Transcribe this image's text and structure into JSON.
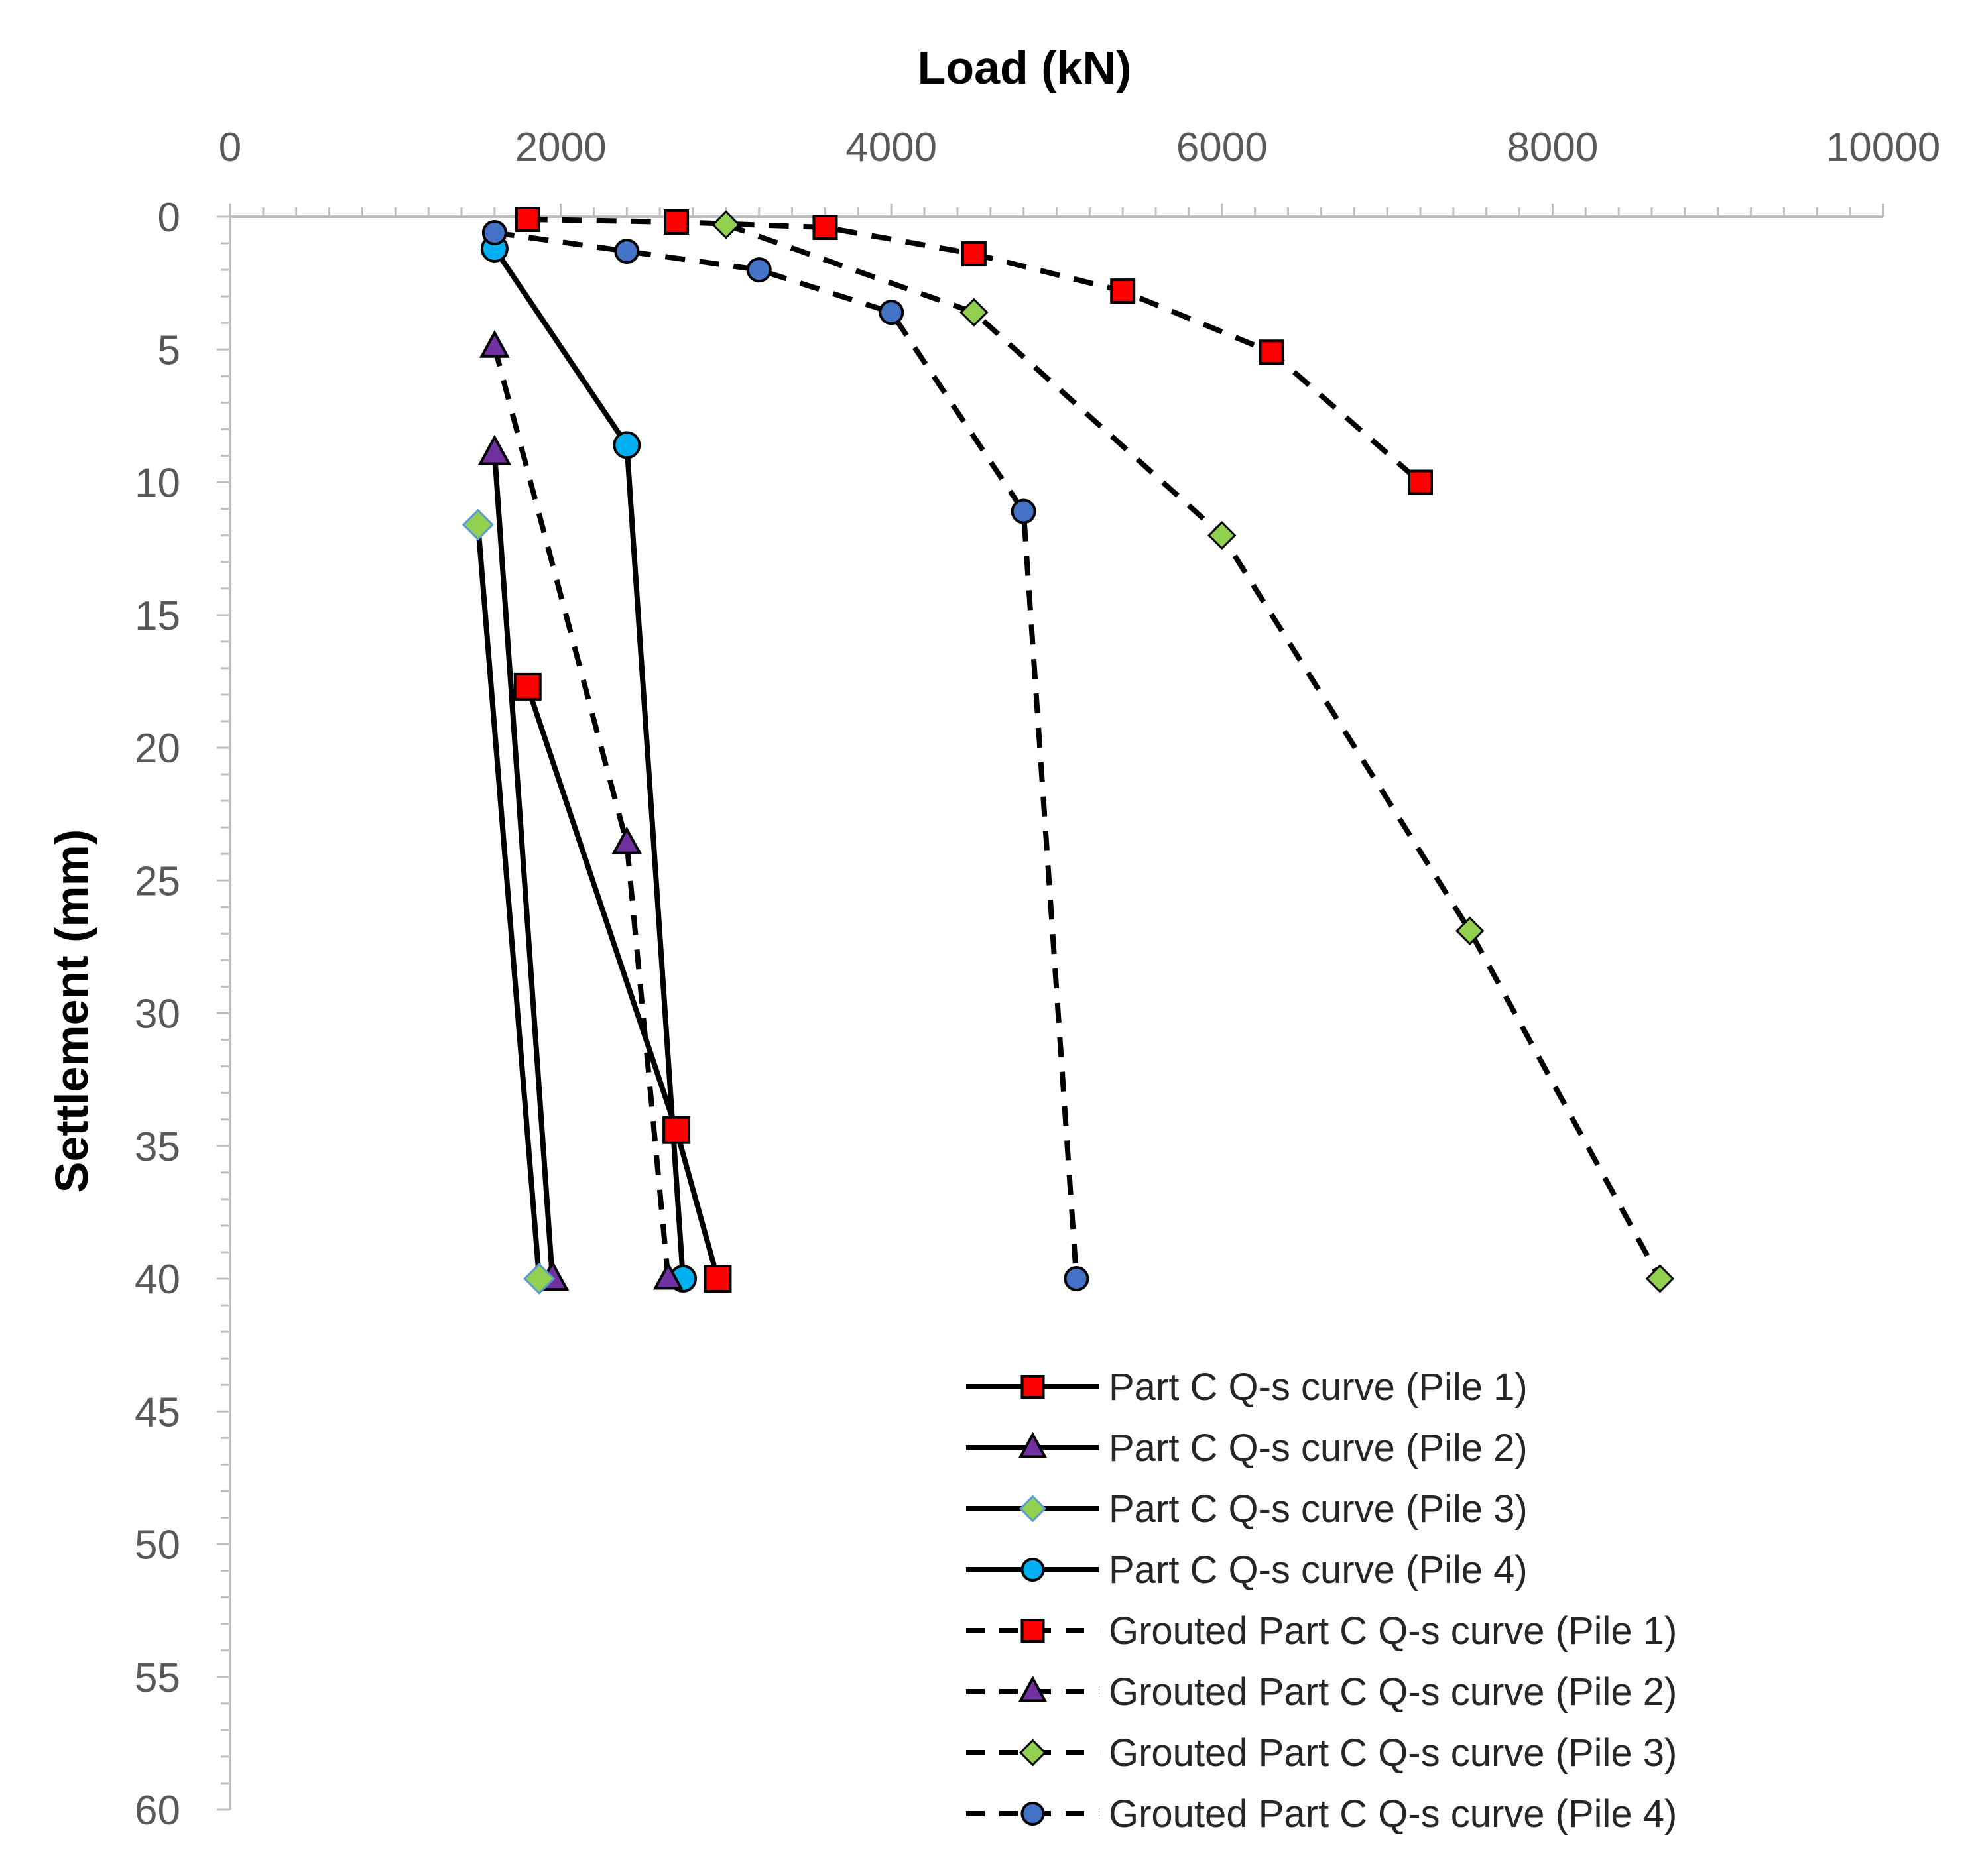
{
  "chart_data": {
    "type": "line",
    "xlabel": "Load (kN)",
    "ylabel": "Settlement (mm)",
    "xlim": [
      0,
      10000
    ],
    "ylim": [
      0,
      60
    ],
    "x_axis_position": "top",
    "y_axis_inverted": true,
    "x_ticks": [
      0,
      2000,
      4000,
      6000,
      8000,
      10000
    ],
    "x_tick_labels": [
      "0",
      "2000",
      "4000",
      "6000",
      "8000",
      "10000"
    ],
    "y_ticks": [
      0,
      5,
      10,
      15,
      20,
      25,
      30,
      35,
      40,
      45,
      50,
      55,
      60
    ],
    "y_tick_labels": [
      "0",
      "5",
      "10",
      "15",
      "20",
      "25",
      "30",
      "35",
      "40",
      "45",
      "50",
      "55",
      "60"
    ],
    "legend_position": "bottom-right",
    "series": [
      {
        "name": "Part C Q-s curve (Pile 1)",
        "line_style": "solid",
        "marker": "square",
        "marker_color": "#ff0000",
        "x": [
          1800,
          2700,
          2950
        ],
        "y": [
          17.7,
          34.4,
          40
        ]
      },
      {
        "name": "Part C Q-s curve (Pile 2)",
        "line_style": "solid",
        "marker": "triangle",
        "marker_color": "#7030a0",
        "x": [
          1600,
          1950
        ],
        "y": [
          8.9,
          40
        ]
      },
      {
        "name": "Part C Q-s curve (Pile 3)",
        "line_style": "solid",
        "marker": "diamond",
        "marker_color": "#92d050",
        "marker_stroke": "#5b9bd5",
        "x": [
          1500,
          1870
        ],
        "y": [
          11.6,
          40
        ]
      },
      {
        "name": "Part C Q-s curve (Pile 4)",
        "line_style": "solid",
        "marker": "circle",
        "marker_color": "#00b0f0",
        "x": [
          1600,
          2400,
          2740
        ],
        "y": [
          1.2,
          8.6,
          40
        ]
      },
      {
        "name": "Grouted Part C Q-s curve (Pile 1)",
        "line_style": "dashed",
        "marker": "square",
        "marker_color": "#ff0000",
        "x": [
          1800,
          2700,
          3600,
          4500,
          5400,
          6300,
          7200
        ],
        "y": [
          0.1,
          0.2,
          0.4,
          1.4,
          2.8,
          5.1,
          10
        ]
      },
      {
        "name": "Grouted Part C Q-s curve (Pile 2)",
        "line_style": "dashed",
        "marker": "triangle",
        "marker_color": "#7030a0",
        "x": [
          1600,
          2400,
          2650
        ],
        "y": [
          4.9,
          23.6,
          40
        ]
      },
      {
        "name": "Grouted Part C Q-s curve (Pile 3)",
        "line_style": "dashed",
        "marker": "diamond",
        "marker_color": "#92d050",
        "x": [
          3000,
          4500,
          6000,
          7500,
          8650
        ],
        "y": [
          0.3,
          3.6,
          12,
          26.9,
          40
        ]
      },
      {
        "name": "Grouted Part C Q-s curve (Pile 4)",
        "line_style": "dashed",
        "marker": "circle",
        "marker_color": "#4472c4",
        "x": [
          1600,
          2400,
          3200,
          4000,
          4800,
          5120
        ],
        "y": [
          0.6,
          1.3,
          2.0,
          3.6,
          11.1,
          40
        ]
      }
    ]
  }
}
